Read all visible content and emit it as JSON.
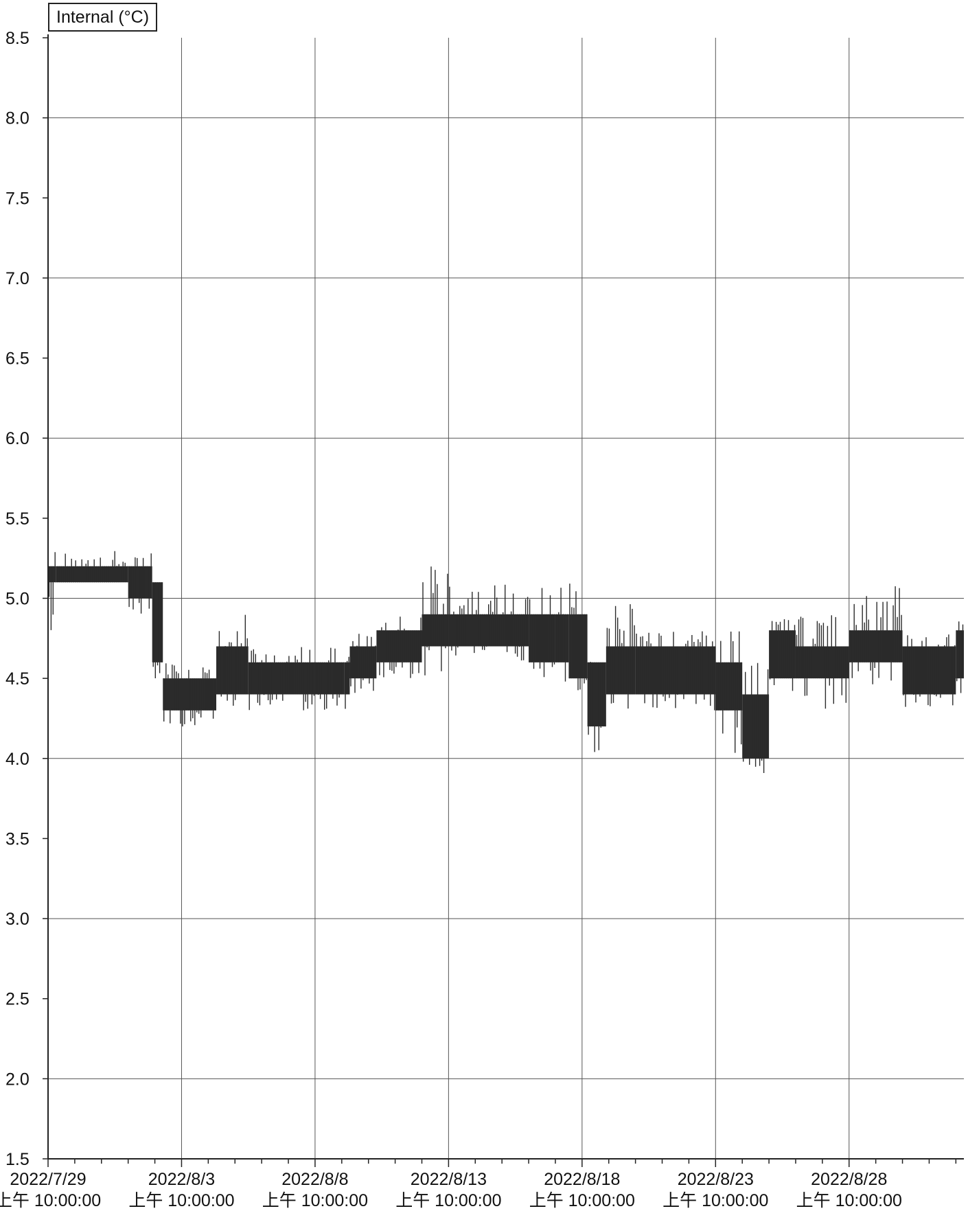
{
  "chart_data": {
    "type": "line",
    "legend": "Internal (°C)",
    "legend_position": "top-left",
    "ylabel": "",
    "xlabel": "",
    "ylim": [
      1.5,
      8.5
    ],
    "yticks": [
      "1.5",
      "2.0",
      "2.5",
      "3.0",
      "3.5",
      "4.0",
      "4.5",
      "5.0",
      "5.5",
      "6.0",
      "6.5",
      "7.0",
      "7.5",
      "8.0",
      "8.5"
    ],
    "xlim_days": [
      0,
      34.3
    ],
    "xticks": [
      {
        "day": 0,
        "date": "2022/7/29",
        "time": "上午 10:00:00"
      },
      {
        "day": 5,
        "date": "2022/8/3",
        "time": "上午 10:00:00"
      },
      {
        "day": 10,
        "date": "2022/8/8",
        "time": "上午 10:00:00"
      },
      {
        "day": 15,
        "date": "2022/8/13",
        "time": "上午 10:00:00"
      },
      {
        "day": 20,
        "date": "2022/8/18",
        "time": "上午 10:00:00"
      },
      {
        "day": 25,
        "date": "2022/8/23",
        "time": "上午 10:00:00"
      },
      {
        "day": 30,
        "date": "2022/8/28",
        "time": "上午 10:00:00"
      }
    ],
    "grid": true,
    "series": [
      {
        "name": "Internal (°C)",
        "color": "#2b2b2b",
        "segments": [
          {
            "x": [
              0.0,
              0.3
            ],
            "band": [
              5.1,
              5.2
            ],
            "range": [
              4.8,
              5.3
            ]
          },
          {
            "x": [
              0.3,
              3.0
            ],
            "band": [
              5.1,
              5.2
            ],
            "range": [
              5.1,
              5.3
            ]
          },
          {
            "x": [
              3.0,
              3.9
            ],
            "band": [
              5.0,
              5.2
            ],
            "range": [
              4.9,
              5.3
            ]
          },
          {
            "x": [
              3.9,
              4.3
            ],
            "band": [
              4.6,
              5.1
            ],
            "range": [
              4.5,
              5.2
            ]
          },
          {
            "x": [
              4.3,
              5.0
            ],
            "band": [
              4.3,
              4.5
            ],
            "range": [
              4.2,
              4.6
            ]
          },
          {
            "x": [
              5.0,
              6.3
            ],
            "band": [
              4.3,
              4.5
            ],
            "range": [
              4.2,
              4.6
            ]
          },
          {
            "x": [
              6.3,
              7.5
            ],
            "band": [
              4.4,
              4.7
            ],
            "range": [
              4.3,
              4.9
            ]
          },
          {
            "x": [
              7.5,
              10.0
            ],
            "band": [
              4.4,
              4.6
            ],
            "range": [
              4.3,
              4.7
            ]
          },
          {
            "x": [
              10.0,
              11.1
            ],
            "band": [
              4.4,
              4.6
            ],
            "range": [
              4.3,
              4.7
            ]
          },
          {
            "x": [
              11.1,
              11.3
            ],
            "band": [
              4.4,
              4.6
            ],
            "range": [
              4.0,
              4.7
            ]
          },
          {
            "x": [
              11.3,
              12.3
            ],
            "band": [
              4.5,
              4.7
            ],
            "range": [
              4.4,
              4.8
            ]
          },
          {
            "x": [
              12.3,
              14.0
            ],
            "band": [
              4.6,
              4.8
            ],
            "range": [
              4.5,
              4.9
            ]
          },
          {
            "x": [
              14.0,
              15.0
            ],
            "band": [
              4.7,
              4.9
            ],
            "range": [
              4.5,
              5.2
            ]
          },
          {
            "x": [
              15.0,
              18.0
            ],
            "band": [
              4.7,
              4.9
            ],
            "range": [
              4.6,
              5.1
            ]
          },
          {
            "x": [
              18.0,
              19.0
            ],
            "band": [
              4.6,
              4.9
            ],
            "range": [
              4.5,
              5.1
            ]
          },
          {
            "x": [
              19.0,
              19.5
            ],
            "band": [
              4.6,
              4.9
            ],
            "range": [
              4.2,
              5.1
            ]
          },
          {
            "x": [
              19.5,
              20.2
            ],
            "band": [
              4.5,
              4.9
            ],
            "range": [
              4.4,
              5.1
            ]
          },
          {
            "x": [
              20.2,
              20.9
            ],
            "band": [
              4.2,
              4.6
            ],
            "range": [
              4.0,
              4.7
            ]
          },
          {
            "x": [
              20.9,
              22.0
            ],
            "band": [
              4.4,
              4.7
            ],
            "range": [
              4.3,
              5.0
            ]
          },
          {
            "x": [
              22.0,
              25.0
            ],
            "band": [
              4.4,
              4.7
            ],
            "range": [
              4.3,
              4.8
            ]
          },
          {
            "x": [
              25.0,
              26.0
            ],
            "band": [
              4.3,
              4.6
            ],
            "range": [
              4.0,
              4.8
            ]
          },
          {
            "x": [
              26.0,
              27.0
            ],
            "band": [
              4.0,
              4.4
            ],
            "range": [
              3.9,
              4.6
            ]
          },
          {
            "x": [
              27.0,
              28.0
            ],
            "band": [
              4.5,
              4.8
            ],
            "range": [
              4.4,
              4.9
            ]
          },
          {
            "x": [
              28.0,
              30.0
            ],
            "band": [
              4.5,
              4.7
            ],
            "range": [
              4.3,
              4.9
            ]
          },
          {
            "x": [
              30.0,
              32.0
            ],
            "band": [
              4.6,
              4.8
            ],
            "range": [
              4.4,
              5.1
            ]
          },
          {
            "x": [
              32.0,
              34.0
            ],
            "band": [
              4.4,
              4.7
            ],
            "range": [
              4.3,
              4.8
            ]
          },
          {
            "x": [
              34.0,
              34.3
            ],
            "band": [
              4.5,
              4.8
            ],
            "range": [
              4.4,
              5.3
            ]
          }
        ]
      }
    ]
  }
}
